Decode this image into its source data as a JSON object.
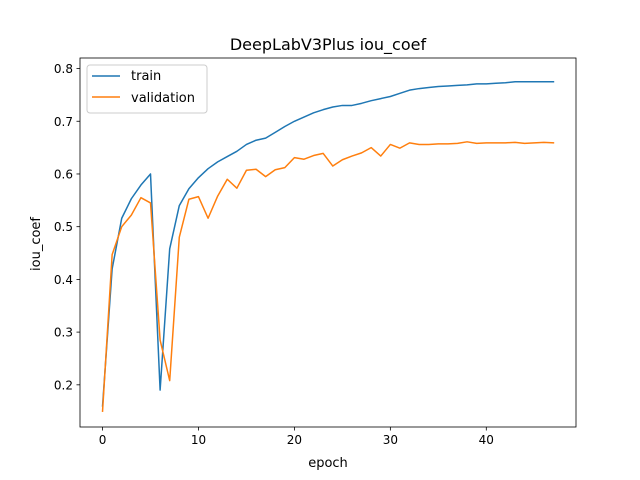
{
  "chart_data": {
    "type": "line",
    "title": "DeepLabV3Plus iou_coef",
    "xlabel": "epoch",
    "ylabel": "iou_coef",
    "xlim": [
      -2.35,
      49.35
    ],
    "ylim": [
      0.12,
      0.82
    ],
    "x_ticks": [
      0,
      10,
      20,
      30,
      40
    ],
    "y_ticks": [
      0.2,
      0.3,
      0.4,
      0.5,
      0.6,
      0.7,
      0.8
    ],
    "x_tick_labels": [
      "0",
      "10",
      "20",
      "30",
      "40"
    ],
    "y_tick_labels": [
      "0.2",
      "0.3",
      "0.4",
      "0.5",
      "0.6",
      "0.7",
      "0.8"
    ],
    "grid": false,
    "legend_position": "top-left",
    "x": [
      0,
      1,
      2,
      3,
      4,
      5,
      6,
      7,
      8,
      9,
      10,
      11,
      12,
      13,
      14,
      15,
      16,
      17,
      18,
      19,
      20,
      21,
      22,
      23,
      24,
      25,
      26,
      27,
      28,
      29,
      30,
      31,
      32,
      33,
      34,
      35,
      36,
      37,
      38,
      39,
      40,
      41,
      42,
      43,
      44,
      45,
      46,
      47
    ],
    "series": [
      {
        "name": "train",
        "color": "#1f77b4",
        "values": [
          0.16,
          0.42,
          0.516,
          0.553,
          0.579,
          0.6,
          0.19,
          0.458,
          0.54,
          0.572,
          0.593,
          0.61,
          0.623,
          0.633,
          0.643,
          0.656,
          0.664,
          0.668,
          0.679,
          0.69,
          0.7,
          0.708,
          0.716,
          0.722,
          0.727,
          0.73,
          0.73,
          0.734,
          0.739,
          0.743,
          0.747,
          0.753,
          0.759,
          0.762,
          0.764,
          0.766,
          0.767,
          0.768,
          0.769,
          0.771,
          0.771,
          0.772,
          0.773,
          0.775,
          0.775,
          0.775,
          0.775,
          0.775
        ]
      },
      {
        "name": "validation",
        "color": "#ff7f0e",
        "values": [
          0.15,
          0.447,
          0.5,
          0.522,
          0.555,
          0.545,
          0.285,
          0.208,
          0.48,
          0.552,
          0.557,
          0.516,
          0.558,
          0.59,
          0.573,
          0.607,
          0.609,
          0.595,
          0.608,
          0.612,
          0.631,
          0.628,
          0.635,
          0.639,
          0.615,
          0.627,
          0.634,
          0.64,
          0.65,
          0.634,
          0.656,
          0.649,
          0.659,
          0.656,
          0.656,
          0.657,
          0.657,
          0.658,
          0.661,
          0.658,
          0.659,
          0.659,
          0.659,
          0.66,
          0.658,
          0.659,
          0.66,
          0.659
        ]
      }
    ]
  }
}
